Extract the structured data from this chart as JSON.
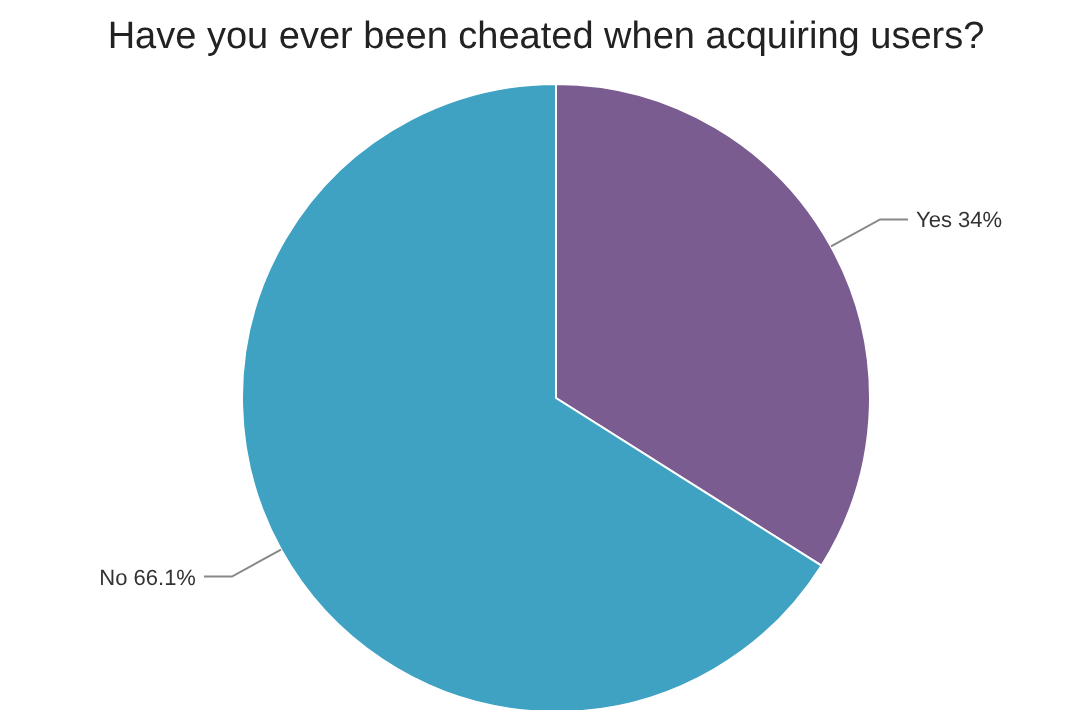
{
  "chart_data": {
    "type": "pie",
    "title": "Have you ever been cheated when acquiring users?",
    "categories": [
      "Yes",
      "No"
    ],
    "values": [
      34,
      66.1
    ],
    "colors": [
      "#7b5c91",
      "#3fa2c3"
    ],
    "value_labels": [
      "34%",
      "66.1%"
    ]
  }
}
